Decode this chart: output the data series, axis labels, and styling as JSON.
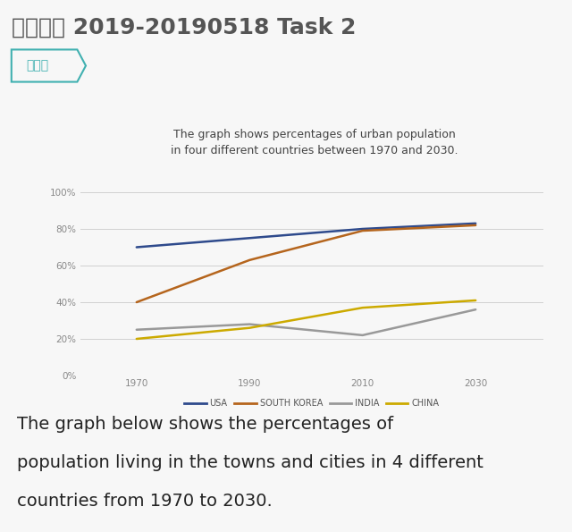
{
  "title_main": "写作真题 2019-20190518 Task 2",
  "tag": "线形图",
  "chart_title": "The graph shows percentages of urban population\nin four different countries between 1970 and 2030.",
  "footer_line1": "The graph below shows the percentages of",
  "footer_line2": "population living in the towns and cities in 4 different",
  "footer_line3": "countries from 1970 to 2030.",
  "x_values": [
    1970,
    1990,
    2010,
    2030
  ],
  "series": {
    "USA": {
      "values": [
        70,
        75,
        80,
        83
      ],
      "color": "#2e4a8c",
      "linewidth": 1.8
    },
    "SOUTH KOREA": {
      "values": [
        40,
        63,
        79,
        82
      ],
      "color": "#b5651d",
      "linewidth": 1.8
    },
    "INDIA": {
      "values": [
        25,
        28,
        22,
        36
      ],
      "color": "#999999",
      "linewidth": 1.8
    },
    "CHINA": {
      "values": [
        20,
        26,
        37,
        41
      ],
      "color": "#ccaa00",
      "linewidth": 1.8
    }
  },
  "ylim": [
    0,
    100
  ],
  "yticks": [
    0,
    20,
    40,
    60,
    80,
    100
  ],
  "ytick_labels": [
    "0%",
    "20%",
    "40%",
    "60%",
    "80%",
    "100%"
  ],
  "xticks": [
    1970,
    1990,
    2010,
    2030
  ],
  "bg_color": "#f7f7f7",
  "chart_bg": "#f7f7f7",
  "tag_color": "#40b0b0",
  "tag_border_color": "#40b0b0",
  "main_title_color": "#555555",
  "footer_color": "#222222",
  "grid_color": "#d0d0d0",
  "tick_color": "#888888",
  "chart_title_color": "#444444"
}
